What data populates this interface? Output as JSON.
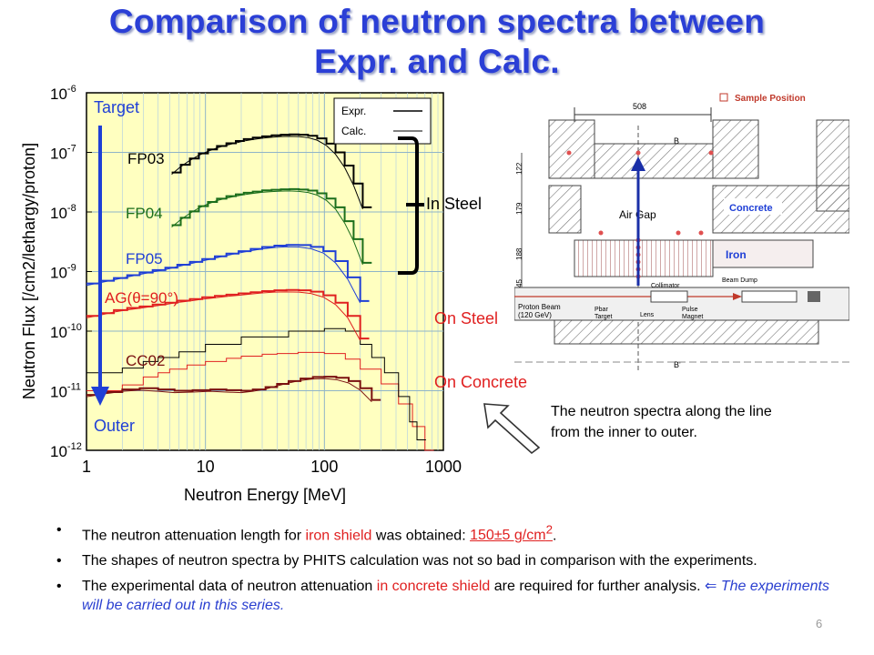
{
  "slide": {
    "title_line1": "Comparison of neutron spectra between",
    "title_line2": "Expr. and Calc.",
    "page_number": "6"
  },
  "chart_data": {
    "type": "line",
    "xscale": "log",
    "yscale": "log",
    "xlim": [
      1,
      1000
    ],
    "ylim": [
      1e-12,
      1e-06
    ],
    "xlabel": "Neutron Energy [MeV]",
    "ylabel": "Neutron Flux [/cm2/lethargy/proton]",
    "x_ticks": [
      "1",
      "10",
      "100",
      "1000"
    ],
    "y_ticks": [
      {
        "base": "10",
        "exp": "-6"
      },
      {
        "base": "10",
        "exp": "-7"
      },
      {
        "base": "10",
        "exp": "-8"
      },
      {
        "base": "10",
        "exp": "-9"
      },
      {
        "base": "10",
        "exp": "-10"
      },
      {
        "base": "10",
        "exp": "-11"
      },
      {
        "base": "10",
        "exp": "-12"
      }
    ],
    "grid": true,
    "legend": {
      "position": "top-right",
      "entries": [
        "Expr.",
        "Calc."
      ]
    },
    "series": [
      {
        "name": "FP03",
        "color": "#000000",
        "x": [
          5.2,
          6.2,
          7.4,
          8.8,
          10.5,
          12.5,
          15,
          18,
          21,
          25,
          30,
          36,
          43,
          51,
          61,
          73,
          87,
          104,
          124,
          148,
          176,
          210
        ],
        "y": [
          4.6e-08,
          6.2e-08,
          7.9e-08,
          9.6e-08,
          1.12e-07,
          1.28e-07,
          1.42e-07,
          1.55e-07,
          1.67e-07,
          1.77e-07,
          1.86e-07,
          1.93e-07,
          1.98e-07,
          2e-07,
          1.98e-07,
          1.9e-07,
          1.72e-07,
          1.4e-07,
          1e-07,
          6e-08,
          3e-08,
          1.2e-08
        ]
      },
      {
        "name": "FP04",
        "color": "#1b6e1b",
        "x": [
          5.2,
          6.2,
          7.4,
          8.8,
          10.5,
          12.5,
          15,
          18,
          21,
          25,
          30,
          36,
          43,
          51,
          61,
          73,
          87,
          104,
          124,
          148,
          176,
          210
        ],
        "y": [
          6e-09,
          8e-09,
          1.02e-08,
          1.25e-08,
          1.47e-08,
          1.67e-08,
          1.84e-08,
          1.98e-08,
          2.1e-08,
          2.2e-08,
          2.3e-08,
          2.36e-08,
          2.4e-08,
          2.42e-08,
          2.38e-08,
          2.28e-08,
          2.06e-08,
          1.68e-08,
          1.2e-08,
          7e-09,
          3.5e-09,
          1.4e-09
        ]
      },
      {
        "name": "FP05",
        "color": "#1f3fd6",
        "x": [
          1,
          1.3,
          1.7,
          2.2,
          2.8,
          3.6,
          4.6,
          5.8,
          7.4,
          9.4,
          12,
          15,
          19,
          24,
          30,
          38,
          48,
          61,
          77,
          98,
          124,
          157,
          200
        ],
        "y": [
          6.3e-10,
          7e-10,
          7.8e-10,
          8.7e-10,
          9.6e-10,
          1.06e-09,
          1.16e-09,
          1.3e-09,
          1.45e-09,
          1.62e-09,
          1.8e-09,
          2e-09,
          2.2e-09,
          2.4e-09,
          2.58e-09,
          2.72e-09,
          2.8e-09,
          2.78e-09,
          2.6e-09,
          2.2e-09,
          1.5e-09,
          8e-10,
          3.2e-10
        ]
      },
      {
        "name": "AG(θ=90°)",
        "color": "#e02020",
        "x": [
          1,
          1.3,
          1.7,
          2.2,
          2.8,
          3.6,
          4.6,
          5.8,
          7.4,
          9.4,
          12,
          15,
          19,
          24,
          30,
          38,
          48,
          61,
          77,
          98,
          124,
          157,
          200
        ],
        "y": [
          1.8e-10,
          2e-10,
          2.25e-10,
          2.45e-10,
          2.6e-10,
          2.8e-10,
          3e-10,
          3.25e-10,
          3.45e-10,
          3.7e-10,
          3.9e-10,
          4.1e-10,
          4.3e-10,
          4.5e-10,
          4.7e-10,
          4.85e-10,
          4.9e-10,
          4.85e-10,
          4.6e-10,
          4e-10,
          3e-10,
          1.8e-10,
          7.5e-11
        ]
      },
      {
        "name": "CC02",
        "color": "#7a1010",
        "x": [
          1,
          1.4,
          2.0,
          2.8,
          4.0,
          5.5,
          7.8,
          11,
          15,
          20,
          25,
          32,
          40,
          50,
          63,
          80,
          100,
          126,
          160,
          200,
          250
        ],
        "y": [
          8.5e-12,
          9.5e-12,
          1.05e-11,
          1.1e-11,
          1.05e-11,
          1e-11,
          1.02e-11,
          1.05e-11,
          1.02e-11,
          1e-11,
          1.05e-11,
          1.15e-11,
          1.3e-11,
          1.45e-11,
          1.6e-11,
          1.7e-11,
          1.72e-11,
          1.65e-11,
          1.45e-11,
          1.1e-11,
          7e-12
        ]
      }
    ],
    "envelopes": [
      {
        "color": "#e02020",
        "x": [
          1,
          2,
          3,
          4,
          5,
          7,
          10,
          15,
          20,
          30,
          40,
          60,
          100,
          150,
          200,
          300,
          420,
          550,
          700
        ],
        "y": [
          1e-11,
          1.25e-11,
          1.7e-11,
          2e-11,
          2.3e-11,
          2.7e-11,
          3.1e-11,
          3.5e-11,
          3.8e-11,
          4.1e-11,
          4.2e-11,
          4.4e-11,
          4.2e-11,
          3.4e-11,
          2.3e-11,
          1.3e-11,
          6e-12,
          2.5e-12,
          1e-12
        ]
      },
      {
        "color": "#000000",
        "x": [
          1,
          2,
          3,
          4,
          6,
          10,
          20,
          50,
          100,
          150,
          200,
          250,
          320,
          420,
          520,
          600
        ],
        "y": [
          2e-11,
          2.4e-11,
          3.1e-11,
          3.6e-11,
          4.5e-11,
          6e-11,
          8e-11,
          1e-10,
          1.1e-10,
          1e-10,
          6e-11,
          3.6e-11,
          2e-11,
          8e-12,
          3e-12,
          1.5e-12
        ]
      }
    ],
    "annotations": {
      "target": "Target",
      "outer": "Outer",
      "in_steel": "In Steel",
      "on_steel": "On Steel",
      "on_concrete": "On Concrete"
    }
  },
  "diagram": {
    "legend_label": "Sample Position",
    "dim_top": "508",
    "label_b": "B",
    "label_b_prime": "B'",
    "air_gap": "Air Gap",
    "concrete": "Concrete",
    "iron": "Iron",
    "beam_dump": "Beam Dump",
    "collimator": "Collimator",
    "proton_beam_1": "Proton Beam",
    "proton_beam_2": "(120 GeV)",
    "pbar_target_1": "Pbar",
    "pbar_target_2": "Target",
    "lens": "Lens",
    "pulse_magnet_1": "Pulse",
    "pulse_magnet_2": "Magnet",
    "dim_122": "122",
    "dim_179": "179",
    "dim_188": "188",
    "dim_45": "45"
  },
  "note": "The neutron spectra along the line from the inner to outer.",
  "bullets": {
    "b1_pre": "The neutron attenuation length for ",
    "b1_red": "iron shield",
    "b1_mid": " was obtained: ",
    "b1_val": "150±5 g/cm",
    "b1_sup": "2",
    "b1_end": ".",
    "b2": "The shapes of neutron spectra by PHITS calculation was not so bad in comparison with the experiments.",
    "b3_pre": "The experimental data of neutron attenuation ",
    "b3_red": "in concrete shield",
    "b3_mid": " are required for further analysis. ",
    "b3_arrow": "⇐",
    "b3_blue": " The experiments will be carried out in this series."
  },
  "colors": {
    "title": "#2b3fd6",
    "plot_bg": "#ffffc0",
    "red": "#e02020",
    "blue": "#1f3fd6",
    "green": "#1b6e1b",
    "dark_red": "#7a1010"
  }
}
